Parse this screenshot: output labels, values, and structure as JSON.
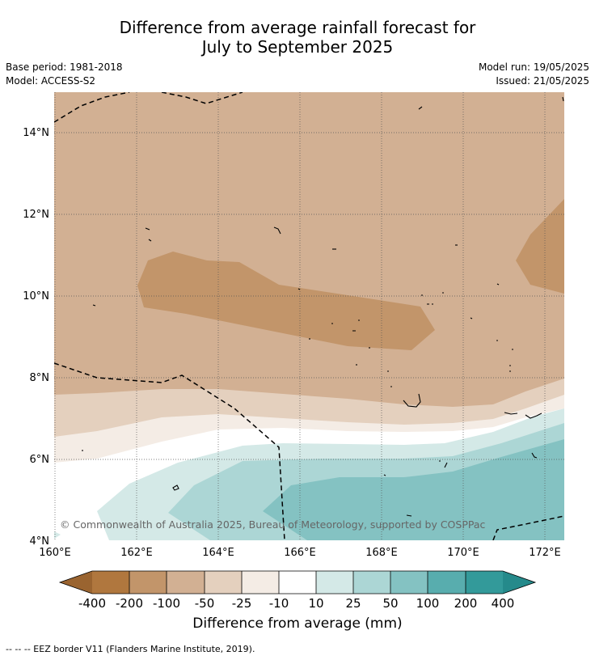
{
  "title": {
    "line1": "Difference from average rainfall forecast for",
    "line2": "July to September 2025"
  },
  "meta": {
    "base_period": "Base period: 1981-2018",
    "model": "Model: ACCESS-S2",
    "model_run": "Model run: 19/05/2025",
    "issued": "Issued: 21/05/2025"
  },
  "map": {
    "lat_labels": [
      "14°N",
      "12°N",
      "10°N",
      "8°N",
      "6°N",
      "4°N"
    ],
    "lon_labels": [
      "160°E",
      "162°E",
      "164°E",
      "166°E",
      "168°E",
      "170°E",
      "172°E"
    ],
    "watermark": "© Commonwealth of Australia 2025, Bureau of Meteorology, supported by COSPPac",
    "grid": true
  },
  "colors": {
    "class_lt_-400": "#9a6430",
    "class_-400_-200": "#b0773e",
    "class_-200_-100": "#c2956a",
    "class_-100_-50": "#d2b093",
    "class_-50_-25": "#e4d0be",
    "class_-25_-10": "#f4ece5",
    "class_-10_10": "#ffffff",
    "class_10_25": "#d4e9e7",
    "class_25_50": "#acd6d5",
    "class_50_100": "#84c2c2",
    "class_100_200": "#58adae",
    "class_200_400": "#339a9a",
    "class_gt_400": "#258a8b"
  },
  "legend": {
    "title": "Difference from average (mm)",
    "ticks": [
      "-400",
      "-200",
      "-100",
      "-50",
      "-25",
      "-10",
      "10",
      "25",
      "50",
      "100",
      "200",
      "400"
    ]
  },
  "footnote": "--  --  -- EEZ border V11 (Flanders Marine Institute, 2019)."
}
